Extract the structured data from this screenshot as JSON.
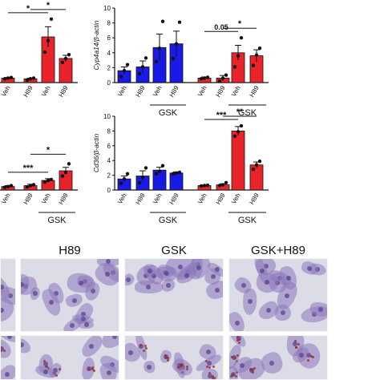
{
  "chart_data": [
    {
      "type": "bar",
      "title": "",
      "xlabel": "",
      "ylabel": "",
      "categories": [
        "Veh",
        "H89",
        "Veh",
        "H89"
      ],
      "colors": [
        "#e8242a",
        "#e8242a",
        "#e8242a",
        "#e8242a"
      ],
      "values": [
        0.35,
        0.3,
        3.6,
        1.9
      ],
      "errors": [
        0.05,
        0.05,
        0.8,
        0.25
      ],
      "points": [
        [
          0.3,
          0.35,
          0.4
        ],
        [
          0.2,
          0.3,
          0.35
        ],
        [
          2.4,
          3.3,
          5.0
        ],
        [
          1.6,
          1.9,
          2.2
        ]
      ],
      "ylim": [
        0,
        6
      ],
      "significance": [
        {
          "from": 0,
          "to": 2,
          "label": "*"
        },
        {
          "from": 1,
          "to": 3,
          "label": "*"
        }
      ]
    },
    {
      "type": "bar",
      "ylabel": "Cyp4a14/β-actin",
      "categories": [
        "Veh",
        "H89",
        "Veh",
        "H89",
        "Veh",
        "H89",
        "Veh",
        "H89"
      ],
      "group_labels": [
        {
          "label": "GSK",
          "from": 2,
          "to": 3
        },
        {
          "label": "GSK",
          "from": 6,
          "to": 7
        }
      ],
      "colors": [
        "#1a1ae6",
        "#1a1ae6",
        "#1a1ae6",
        "#1a1ae6",
        "#e8242a",
        "#e8242a",
        "#e8242a",
        "#e8242a"
      ],
      "values": [
        1.6,
        2.1,
        4.7,
        5.2,
        0.6,
        0.6,
        4.0,
        3.6
      ],
      "errors": [
        0.5,
        0.8,
        1.8,
        1.7,
        0.15,
        0.35,
        1.0,
        0.8
      ],
      "points": [
        [
          0.8,
          1.6,
          2.4
        ],
        [
          1.2,
          2.1,
          3.3
        ],
        [
          2.8,
          4.6,
          8.2
        ],
        [
          3.2,
          5.2,
          8.1
        ],
        [
          0.5,
          0.6,
          0.7
        ],
        [
          0.2,
          0.6,
          1.0
        ],
        [
          2.1,
          3.6,
          6.0
        ],
        [
          2.3,
          3.7,
          4.6
        ]
      ],
      "ylim": [
        0,
        10
      ],
      "yticks": [
        0,
        2,
        4,
        6,
        8,
        10
      ],
      "significance": [
        {
          "from": 4,
          "to": 6,
          "label": "0.05"
        },
        {
          "from": 5,
          "to": 7,
          "label": "*"
        }
      ]
    },
    {
      "type": "bar",
      "ylabel": "",
      "categories": [
        "Veh",
        "H89",
        "Veh",
        "H89"
      ],
      "group_labels": [
        {
          "label": "GSK",
          "from": 2,
          "to": 3
        }
      ],
      "colors": [
        "#e8242a",
        "#e8242a",
        "#e8242a",
        "#e8242a"
      ],
      "values": [
        0.2,
        0.25,
        0.55,
        1.1
      ],
      "errors": [
        0.05,
        0.08,
        0.1,
        0.2
      ],
      "points": [
        [
          0.15,
          0.2,
          0.25
        ],
        [
          0.18,
          0.25,
          0.3
        ],
        [
          0.45,
          0.55,
          0.6
        ],
        [
          0.8,
          1.0,
          1.5
        ]
      ],
      "ylim": [
        0,
        4
      ],
      "significance": [
        {
          "from": 0,
          "to": 2,
          "label": "***"
        },
        {
          "from": 1,
          "to": 3,
          "label": "*"
        }
      ]
    },
    {
      "type": "bar",
      "ylabel": "Cd36/β-actin",
      "categories": [
        "Veh",
        "H89",
        "Veh",
        "H89",
        "Veh",
        "H89",
        "Veh",
        "H89"
      ],
      "group_labels": [
        {
          "label": "GSK",
          "from": 2,
          "to": 3
        },
        {
          "label": "GSK",
          "from": 6,
          "to": 7
        }
      ],
      "colors": [
        "#1a1ae6",
        "#1a1ae6",
        "#1a1ae6",
        "#1a1ae6",
        "#e8242a",
        "#e8242a",
        "#e8242a",
        "#e8242a"
      ],
      "values": [
        1.5,
        1.9,
        2.7,
        2.3,
        0.6,
        0.7,
        8.0,
        3.4
      ],
      "errors": [
        0.4,
        0.7,
        0.4,
        0.15,
        0.05,
        0.15,
        0.6,
        0.4
      ],
      "points": [
        [
          0.9,
          1.5,
          2.2
        ],
        [
          1.0,
          1.7,
          3.0
        ],
        [
          2.2,
          2.5,
          3.3
        ],
        [
          2.2,
          2.3,
          2.4
        ],
        [
          0.55,
          0.6,
          0.65
        ],
        [
          0.6,
          0.7,
          1.0
        ],
        [
          7.3,
          7.9,
          8.7
        ],
        [
          2.8,
          3.4,
          3.9
        ]
      ],
      "ylim": [
        0,
        10
      ],
      "yticks": [
        0,
        2,
        4,
        6,
        8,
        10
      ],
      "significance": [
        {
          "from": 4,
          "to": 6,
          "label": "***"
        },
        {
          "from": 5,
          "to": 7,
          "label": "**"
        }
      ]
    }
  ],
  "micrographs": {
    "column_labels": [
      "H89",
      "GSK",
      "GSK+H89"
    ]
  }
}
